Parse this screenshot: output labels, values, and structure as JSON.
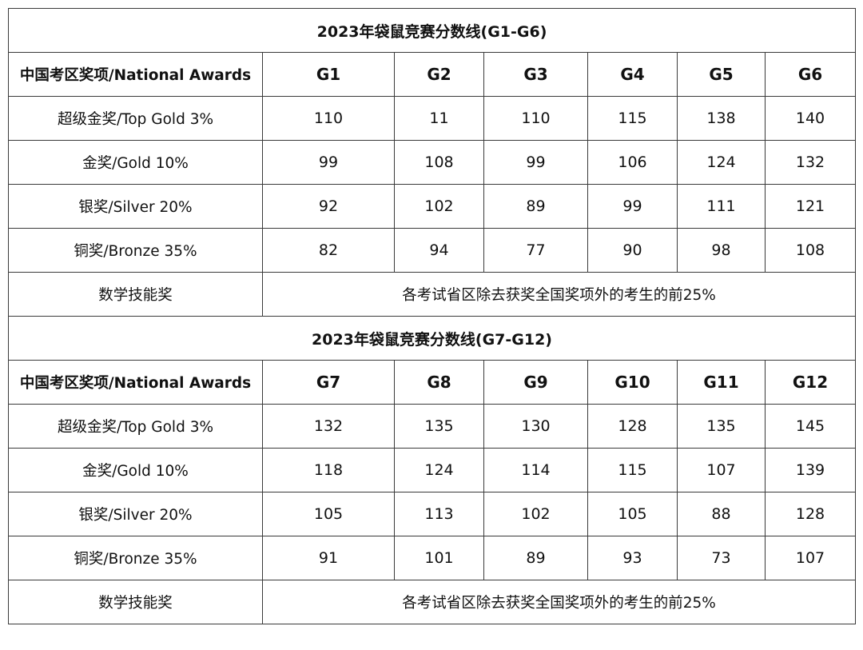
{
  "tables": [
    {
      "title": "2023年袋鼠竞赛分数线(G1-G6)",
      "header_label": "中国考区奖项/National Awards",
      "grades": [
        "G1",
        "G2",
        "G3",
        "G4",
        "G5",
        "G6"
      ],
      "rows": [
        {
          "label": "超级金奖/Top Gold 3%",
          "values": [
            "110",
            "11",
            "110",
            "115",
            "138",
            "140"
          ]
        },
        {
          "label": "金奖/Gold 10%",
          "values": [
            "99",
            "108",
            "99",
            "106",
            "124",
            "132"
          ]
        },
        {
          "label": "银奖/Silver 20%",
          "values": [
            "92",
            "102",
            "89",
            "99",
            "111",
            "121"
          ]
        },
        {
          "label": "铜奖/Bronze 35%",
          "values": [
            "82",
            "94",
            "77",
            "90",
            "98",
            "108"
          ]
        }
      ],
      "skill_award": {
        "label": "数学技能奖",
        "note": "各考试省区除去获奖全国奖项外的考生的前25%"
      }
    },
    {
      "title": "2023年袋鼠竞赛分数线(G7-G12)",
      "header_label": "中国考区奖项/National Awards",
      "grades": [
        "G7",
        "G8",
        "G9",
        "G10",
        "G11",
        "G12"
      ],
      "rows": [
        {
          "label": "超级金奖/Top Gold 3%",
          "values": [
            "132",
            "135",
            "130",
            "128",
            "135",
            "145"
          ]
        },
        {
          "label": "金奖/Gold 10%",
          "values": [
            "118",
            "124",
            "114",
            "115",
            "107",
            "139"
          ]
        },
        {
          "label": "银奖/Silver 20%",
          "values": [
            "105",
            "113",
            "102",
            "105",
            "88",
            "128"
          ]
        },
        {
          "label": "铜奖/Bronze 35%",
          "values": [
            "91",
            "101",
            "89",
            "93",
            "73",
            "107"
          ]
        }
      ],
      "skill_award": {
        "label": "数学技能奖",
        "note": "各考试省区除去获奖全国奖项外的考生的前25%"
      }
    }
  ]
}
